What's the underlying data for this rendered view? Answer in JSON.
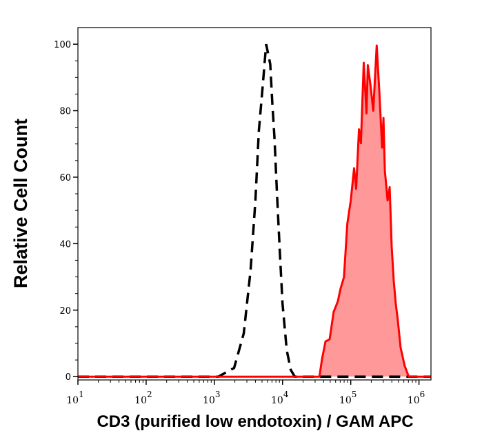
{
  "chart_data": {
    "type": "area",
    "title": "",
    "xlabel": "CD3 (purified low endotoxin) / GAM APC",
    "ylabel": "Relative Cell Count",
    "x_scale": "log",
    "x_base": "10",
    "x_tick_exponents": [
      1,
      2,
      3,
      4,
      5,
      6
    ],
    "xlim": [
      10,
      1500000
    ],
    "ylim": [
      -1,
      105
    ],
    "y_ticks": [
      0,
      20,
      40,
      60,
      80,
      100
    ],
    "grid": false,
    "legend": "none",
    "series": [
      {
        "style": "dashed-black-unfilled",
        "color": "#000000",
        "x": [
          10,
          1000,
          1150,
          1950,
          2700,
          3400,
          4000,
          4500,
          5000,
          5750,
          6600,
          7100,
          7600,
          8300,
          9100,
          10000,
          11500,
          13200,
          15100,
          1500000
        ],
        "y": [
          0,
          0,
          0,
          2.6,
          13,
          32,
          53,
          74,
          85,
          100,
          94,
          82,
          72,
          55,
          38,
          22,
          8,
          2,
          0,
          0
        ]
      },
      {
        "style": "solid-red-filled",
        "color": "#ff0000",
        "fill": "#ff9999",
        "x": [
          10,
          34700,
          38000,
          42700,
          49000,
          56200,
          64600,
          70800,
          79400,
          89100,
          100000,
          112000,
          120000,
          132000,
          141000,
          155000,
          170000,
          178000,
          195000,
          214000,
          240000,
          263000,
          288000,
          302000,
          316000,
          347000,
          372000,
          398000,
          427000,
          457000,
          490000,
          537000,
          617000,
          708000,
          1500000
        ],
        "y": [
          0,
          0,
          5.4,
          10.6,
          11.2,
          19.5,
          22.6,
          26.4,
          29.9,
          46,
          53,
          62.7,
          56.5,
          74.4,
          70.2,
          94.4,
          79.2,
          93.7,
          87.5,
          80,
          99.6,
          85.4,
          68.9,
          77.8,
          62,
          53,
          57,
          39.2,
          28.8,
          22,
          17,
          8.8,
          3.3,
          0,
          0
        ]
      }
    ]
  }
}
